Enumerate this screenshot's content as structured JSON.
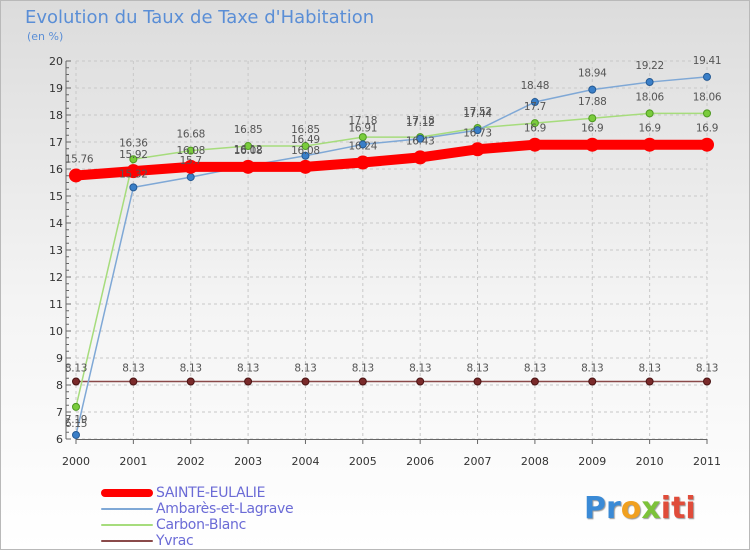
{
  "chart_data": {
    "type": "line",
    "title": "Evolution du Taux de Taxe d'Habitation",
    "subtitle": "(en %)",
    "x": [
      "2000",
      "2001",
      "2002",
      "2003",
      "2004",
      "2005",
      "2006",
      "2007",
      "2008",
      "2009",
      "2010",
      "2011"
    ],
    "yticks": [
      "6",
      "7",
      "8",
      "9",
      "10",
      "11",
      "12",
      "13",
      "14",
      "15",
      "16",
      "17",
      "18",
      "19",
      "20"
    ],
    "ylim": [
      6,
      20
    ],
    "grid": true,
    "legend_position": "bottom-left",
    "series": [
      {
        "name": "SAINTE-EULALIE",
        "color": "#ff0000",
        "values": [
          15.76,
          15.92,
          16.08,
          16.08,
          16.08,
          16.24,
          16.43,
          16.73,
          16.9,
          16.9,
          16.9,
          16.9
        ],
        "labels": [
          "15.76",
          "15.92",
          "16.08",
          "16.08",
          "16.08",
          "16.24",
          "16.43",
          "16.73",
          "16.9",
          "16.9",
          "16.9",
          "16.9"
        ]
      },
      {
        "name": "Ambarès-et-Lagrave",
        "color": "#3a7fc8",
        "values": [
          6.15,
          15.32,
          15.7,
          16.12,
          16.49,
          16.91,
          17.12,
          17.44,
          18.48,
          18.94,
          19.22,
          19.41
        ],
        "labels": [
          "6.15",
          "15.32",
          "15.7",
          "16.12",
          "16.49",
          "16.91",
          "17.12",
          "17.44",
          "18.48",
          "18.94",
          "19.22",
          "19.41"
        ]
      },
      {
        "name": "Carbon-Blanc",
        "color": "#7acc3c",
        "values": [
          7.19,
          16.36,
          16.68,
          16.85,
          16.85,
          17.18,
          17.18,
          17.52,
          17.7,
          17.88,
          18.06,
          18.06
        ],
        "labels": [
          "7.19",
          "16.36",
          "16.68",
          "16.85",
          "16.85",
          "17.18",
          "17.18",
          "17.52",
          "17.7",
          "17.88",
          "18.06",
          "18.06"
        ]
      },
      {
        "name": "Yvrac",
        "color": "#7a2a2a",
        "values": [
          8.13,
          8.13,
          8.13,
          8.13,
          8.13,
          8.13,
          8.13,
          8.13,
          8.13,
          8.13,
          8.13,
          8.13
        ],
        "labels": [
          "8.13",
          "8.13",
          "8.13",
          "8.13",
          "8.13",
          "8.13",
          "8.13",
          "8.13",
          "8.13",
          "8.13",
          "8.13",
          "8.13"
        ]
      }
    ]
  },
  "branding": {
    "logo_text_parts": [
      "Pr",
      "o",
      "x",
      "iti"
    ],
    "colors": [
      "#3a8ad6",
      "#f0a020",
      "#7cc23a",
      "#e04c3a"
    ]
  }
}
